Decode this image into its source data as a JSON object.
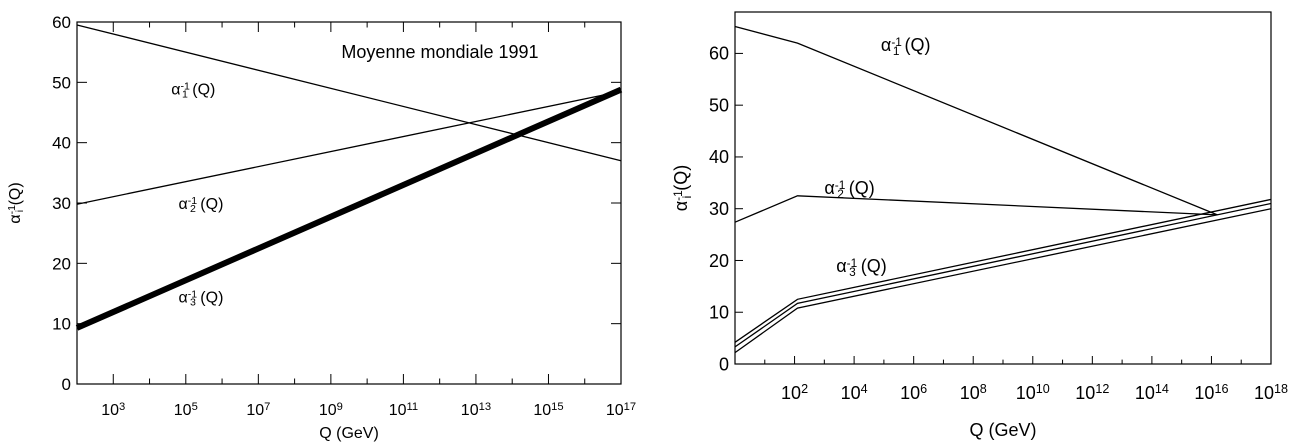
{
  "chart_data": [
    {
      "type": "line",
      "title": "Moyenne mondiale 1991",
      "xlabel": "Q (GeV)",
      "ylabel_main": "α",
      "ylabel_sub": "i",
      "ylabel_sup": "-1",
      "ylabel_tail": "(Q)",
      "x_scale": "log10",
      "xlim_exp": [
        2,
        17
      ],
      "ylim": [
        0,
        60
      ],
      "x_ticks": [
        {
          "exp": 3,
          "label": "10",
          "sup": "3"
        },
        {
          "exp": 5,
          "label": "10",
          "sup": "5"
        },
        {
          "exp": 7,
          "label": "10",
          "sup": "7"
        },
        {
          "exp": 9,
          "label": "10",
          "sup": "9"
        },
        {
          "exp": 11,
          "label": "10",
          "sup": "11"
        },
        {
          "exp": 13,
          "label": "10",
          "sup": "13"
        },
        {
          "exp": 15,
          "label": "10",
          "sup": "15"
        },
        {
          "exp": 17,
          "label": "10",
          "sup": "17"
        }
      ],
      "y_ticks": [
        {
          "value": 0,
          "label": "0"
        },
        {
          "value": 10,
          "label": "10"
        },
        {
          "value": 20,
          "label": "20"
        },
        {
          "value": 30,
          "label": "30"
        },
        {
          "value": 40,
          "label": "40"
        },
        {
          "value": 50,
          "label": "50"
        },
        {
          "value": 60,
          "label": "60"
        }
      ],
      "grid": false,
      "series": [
        {
          "id": "alpha1",
          "label_main": "α",
          "label_sub": "1",
          "label_sup": "-1",
          "label_tail": "(Q)",
          "weight": "thin",
          "points": [
            [
              2,
              59.5
            ],
            [
              17,
              37.0
            ]
          ]
        },
        {
          "id": "alpha2",
          "label_main": "α",
          "label_sub": "2",
          "label_sup": "-1",
          "label_tail": "(Q)",
          "weight": "thin",
          "points": [
            [
              2,
              29.8
            ],
            [
              17,
              48.5
            ]
          ]
        },
        {
          "id": "alpha3",
          "label_main": "α",
          "label_sub": "3",
          "label_sup": "-1",
          "label_tail": "(Q)",
          "weight": "thick",
          "points": [
            [
              2,
              9.3
            ],
            [
              17,
              48.8
            ]
          ]
        }
      ],
      "series_labels": [
        {
          "series": "alpha1",
          "at": [
            4.6,
            48.0
          ]
        },
        {
          "series": "alpha2",
          "at": [
            4.8,
            29.0
          ]
        },
        {
          "series": "alpha3",
          "at": [
            4.8,
            13.5
          ]
        }
      ]
    },
    {
      "type": "line",
      "xlabel": "Q (GeV)",
      "ylabel_main": "α",
      "ylabel_sub": "i",
      "ylabel_sup": "-1",
      "ylabel_tail": "(Q)",
      "x_scale": "log10",
      "xlim_exp": [
        0,
        18
      ],
      "ylim": [
        0,
        68
      ],
      "x_ticks": [
        {
          "exp": 2,
          "label": "10",
          "sup": "2"
        },
        {
          "exp": 4,
          "label": "10",
          "sup": "4"
        },
        {
          "exp": 6,
          "label": "10",
          "sup": "6"
        },
        {
          "exp": 8,
          "label": "10",
          "sup": "8"
        },
        {
          "exp": 10,
          "label": "10",
          "sup": "10"
        },
        {
          "exp": 12,
          "label": "10",
          "sup": "12"
        },
        {
          "exp": 14,
          "label": "10",
          "sup": "14"
        },
        {
          "exp": 16,
          "label": "10",
          "sup": "16"
        },
        {
          "exp": 18,
          "label": "10",
          "sup": "18"
        }
      ],
      "y_ticks": [
        {
          "value": 0,
          "label": "0"
        },
        {
          "value": 10,
          "label": "10"
        },
        {
          "value": 20,
          "label": "20"
        },
        {
          "value": 30,
          "label": "30"
        },
        {
          "value": 40,
          "label": "40"
        },
        {
          "value": 50,
          "label": "50"
        },
        {
          "value": 60,
          "label": "60"
        }
      ],
      "grid": false,
      "series": [
        {
          "id": "alpha1",
          "label_main": "α",
          "label_sub": "1",
          "label_sup": "-1",
          "label_tail": "(Q)",
          "weight": "thin",
          "points": [
            [
              0,
              65.2
            ],
            [
              2.1,
              62.0
            ],
            [
              16.2,
              28.8
            ]
          ]
        },
        {
          "id": "alpha2",
          "label_main": "α",
          "label_sub": "2",
          "label_sup": "-1",
          "label_tail": "(Q)",
          "weight": "thin",
          "points": [
            [
              0,
              27.4
            ],
            [
              2.1,
              32.5
            ],
            [
              16.2,
              28.8
            ]
          ]
        },
        {
          "id": "alpha3_upper",
          "weight": "thin",
          "points": [
            [
              0,
              4.2
            ],
            [
              2.1,
              12.5
            ],
            [
              18,
              31.8
            ]
          ]
        },
        {
          "id": "alpha3_mid",
          "weight": "thin",
          "points": [
            [
              0,
              3.3
            ],
            [
              2.1,
              11.7
            ],
            [
              18,
              31.0
            ]
          ]
        },
        {
          "id": "alpha3_lower",
          "weight": "thin",
          "points": [
            [
              0,
              2.2
            ],
            [
              2.1,
              10.8
            ],
            [
              18,
              30.0
            ]
          ]
        }
      ],
      "series_labels": [
        {
          "series": "alpha1",
          "at": [
            4.9,
            60.5
          ],
          "label_main": "α",
          "label_sub": "1",
          "label_sup": "-1",
          "label_tail": "(Q)"
        },
        {
          "series": "alpha2",
          "at": [
            3.0,
            32.8
          ],
          "label_main": "α",
          "label_sub": "2",
          "label_sup": "-1",
          "label_tail": "(Q)"
        },
        {
          "series": "alpha3",
          "at": [
            3.4,
            17.8
          ],
          "label_main": "α",
          "label_sub": "3",
          "label_sup": "-1",
          "label_tail": "(Q)"
        }
      ]
    }
  ]
}
